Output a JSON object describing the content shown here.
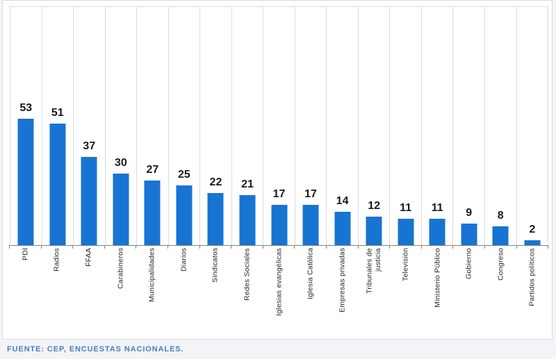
{
  "ui": {
    "red_marker_color": "#e02a20",
    "card_background": "#ffffff",
    "footer": {
      "source_text": "FUENTE: CEP, ENCUESTAS NACIONALES.",
      "text_color": "#4a7dbd"
    }
  },
  "chart_data": {
    "type": "bar",
    "title": "",
    "xlabel": "",
    "ylabel": "",
    "categories": [
      "PDI",
      "Radios",
      "FFAA",
      "Carabineros",
      "Municipalidades",
      "Diarios",
      "Sindicatos",
      "Redes Sociales",
      "Iglesias evangélicas",
      "Iglesia Católica",
      "Empresas privadas",
      "Tribunales de\njusticia",
      "Televisión",
      "Ministerio Público",
      "Gobierno",
      "Congreso",
      "Partidos políticos"
    ],
    "values": [
      53,
      51,
      37,
      30,
      27,
      25,
      22,
      21,
      17,
      17,
      14,
      12,
      11,
      11,
      9,
      8,
      2
    ],
    "value_labels": "above bars",
    "ylim": [
      0,
      100
    ],
    "bar_color": "#1874d2",
    "grid": "vertical category separators, light gray",
    "legend": "none",
    "x_labels_rotation": "90 degrees, reading bottom to top"
  }
}
